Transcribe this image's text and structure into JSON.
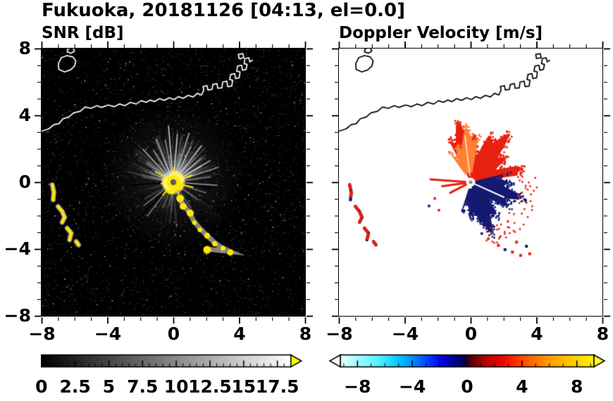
{
  "title": "Fukuoka, 20181126 [04:13, el=0.0]",
  "coastline": {
    "region": "Fukuoka coast and islands",
    "paths": [
      {
        "name": "mainland-coast",
        "closed": false,
        "points": [
          [
            -8,
            3.05
          ],
          [
            -7.55,
            3.2
          ],
          [
            -7.25,
            3.45
          ],
          [
            -6.95,
            3.5
          ],
          [
            -6.7,
            3.8
          ],
          [
            -6.35,
            3.9
          ],
          [
            -6.05,
            4.15
          ],
          [
            -5.65,
            4.25
          ],
          [
            -5.35,
            4.5
          ],
          [
            -5,
            4.42
          ],
          [
            -4.65,
            4.58
          ],
          [
            -4.35,
            4.48
          ],
          [
            -3.95,
            4.62
          ],
          [
            -3.6,
            4.52
          ],
          [
            -3.25,
            4.68
          ],
          [
            -2.95,
            4.58
          ],
          [
            -2.6,
            4.78
          ],
          [
            -2.25,
            4.68
          ],
          [
            -1.95,
            4.88
          ],
          [
            -1.65,
            4.78
          ],
          [
            -1.4,
            4.92
          ],
          [
            -1.15,
            4.82
          ],
          [
            -0.85,
            5
          ],
          [
            -0.55,
            4.9
          ],
          [
            -0.25,
            5.05
          ],
          [
            0.05,
            4.95
          ],
          [
            0.3,
            5.12
          ],
          [
            0.6,
            5.02
          ],
          [
            0.9,
            5.2
          ],
          [
            1.2,
            5.1
          ],
          [
            1.45,
            5.32
          ],
          [
            1.7,
            5.22
          ],
          [
            1.85,
            5.5
          ],
          [
            1.8,
            5.72
          ],
          [
            2.05,
            5.78
          ],
          [
            2.1,
            5.52
          ],
          [
            2.35,
            5.55
          ],
          [
            2.4,
            5.85
          ],
          [
            2.65,
            5.9
          ],
          [
            2.7,
            5.62
          ],
          [
            2.95,
            5.65
          ],
          [
            3,
            6
          ],
          [
            3.25,
            6.05
          ],
          [
            3.3,
            5.72
          ],
          [
            3.55,
            5.75
          ],
          [
            3.6,
            6.1
          ],
          [
            3.42,
            6.15
          ],
          [
            3.48,
            6.45
          ],
          [
            3.72,
            6.5
          ],
          [
            3.78,
            6.2
          ],
          [
            4,
            6.25
          ],
          [
            4.05,
            6.6
          ],
          [
            3.85,
            6.65
          ],
          [
            3.9,
            6.95
          ],
          [
            4.15,
            7
          ],
          [
            4.2,
            6.7
          ],
          [
            4.42,
            6.75
          ],
          [
            4.48,
            7.05
          ],
          [
            4.3,
            7.1
          ],
          [
            4.35,
            7.4
          ],
          [
            4.58,
            7.45
          ],
          [
            4.65,
            7.2
          ],
          [
            4.8,
            7.3
          ]
        ]
      },
      {
        "name": "island-northwest",
        "closed": true,
        "points": [
          [
            -6.95,
            6.75
          ],
          [
            -6.6,
            6.6
          ],
          [
            -6.25,
            6.72
          ],
          [
            -6,
            6.95
          ],
          [
            -5.92,
            7.25
          ],
          [
            -6.1,
            7.5
          ],
          [
            -6.45,
            7.58
          ],
          [
            -6.8,
            7.45
          ],
          [
            -6.98,
            7.1
          ]
        ]
      },
      {
        "name": "islet-top",
        "closed": true,
        "points": [
          [
            -6.45,
            7.8
          ],
          [
            -6.2,
            7.72
          ],
          [
            -6,
            7.85
          ],
          [
            -6.1,
            8.05
          ],
          [
            -6.4,
            8
          ]
        ]
      },
      {
        "name": "islet-harbor",
        "closed": true,
        "points": [
          [
            4,
            7.4
          ],
          [
            4.28,
            7.45
          ],
          [
            4.22,
            7.7
          ],
          [
            3.95,
            7.65
          ]
        ]
      }
    ]
  },
  "echo_arcs": [
    [
      [
        -7.35,
        -0.15
      ],
      [
        -7.25,
        -0.6
      ],
      [
        -7.3,
        -1.05
      ]
    ],
    [
      [
        -7,
        -1.45
      ],
      [
        -6.75,
        -1.75
      ],
      [
        -6.6,
        -2.1
      ],
      [
        -6.75,
        -2.4
      ]
    ],
    [
      [
        -6.45,
        -2.75
      ],
      [
        -6.2,
        -3.05
      ],
      [
        -6.3,
        -3.45
      ]
    ],
    [
      [
        -5.9,
        -3.55
      ],
      [
        -5.75,
        -3.75
      ]
    ]
  ],
  "chart_data": [
    {
      "id": "snr",
      "type": "heatmap",
      "title": "SNR [dB]",
      "xlim": [
        -8,
        8
      ],
      "ylim": [
        -8,
        8
      ],
      "xtick_values": [
        -8,
        -4,
        0,
        4,
        8
      ],
      "xtick_labels": [
        "−8",
        "−4",
        "0",
        "4",
        "8"
      ],
      "ytick_values": [
        8,
        4,
        0,
        -4,
        -8
      ],
      "ytick_labels": [
        "8",
        "4",
        "0",
        "−4",
        "−8"
      ],
      "background_color": "#000000",
      "radar_site": [
        0,
        0
      ],
      "colorbar": {
        "min": 0,
        "max": 18.5,
        "tick_values": [
          0,
          2.5,
          5,
          7.5,
          10,
          12.5,
          15,
          17.5
        ],
        "tick_labels": [
          "0",
          "2.5",
          "5",
          "7.5",
          "10",
          "12.5",
          "15",
          "17.5"
        ],
        "minor_tick_step": 0.5,
        "stops": [
          [
            0,
            "#000000"
          ],
          [
            18.5,
            "#ffffff"
          ]
        ],
        "over_arrow_color": "#ffff00"
      },
      "render": {
        "noise": {
          "count": 6500,
          "max_gray": 115,
          "bright_count": 130
        },
        "glow": {
          "center": [
            0,
            0.3
          ],
          "radius_km": 4.4,
          "alpha": 0.16
        },
        "faint_streak_count": 150,
        "bright_streaks": [
          [
            95,
            3.4,
            0.7
          ],
          [
            101,
            2.6,
            0.5
          ],
          [
            85,
            2.9,
            0.55
          ],
          [
            72,
            3.1,
            0.6
          ],
          [
            63,
            2.4,
            0.45
          ],
          [
            52,
            2.8,
            0.5
          ],
          [
            40,
            2.2,
            0.45
          ],
          [
            30,
            2.6,
            0.55
          ],
          [
            18,
            2.9,
            0.5
          ],
          [
            8,
            2.3,
            0.4
          ],
          [
            -4,
            2.7,
            0.5
          ],
          [
            -18,
            2.1,
            0.35
          ],
          [
            -35,
            1.8,
            0.3
          ],
          [
            112,
            2.8,
            0.55
          ],
          [
            122,
            2.3,
            0.45
          ],
          [
            133,
            2.7,
            0.5
          ],
          [
            145,
            2,
            0.35
          ],
          [
            158,
            1.6,
            0.3
          ],
          [
            205,
            1.9,
            0.3
          ],
          [
            218,
            2.3,
            0.35
          ],
          [
            232,
            2.6,
            0.4
          ],
          [
            247,
            1.7,
            0.3
          ],
          [
            260,
            1.4,
            0.25
          ],
          [
            -55,
            1.9,
            0.3
          ],
          [
            -70,
            1.5,
            0.25
          ]
        ],
        "dark_spokes": [
          [
            184,
            2.6
          ],
          [
            205,
            2.2
          ],
          [
            226,
            3.3
          ],
          [
            351,
            2.4
          ]
        ],
        "center_echo": {
          "color": "#ffe800",
          "radius_km": 0.55,
          "spike_count": 14,
          "spike_len_km": 0.9
        },
        "echo_chain": {
          "color": "#ffe800",
          "points": [
            [
              0.35,
              -0.95
            ],
            [
              0.65,
              -1.4
            ],
            [
              1,
              -1.85
            ],
            [
              1.25,
              -2.35
            ],
            [
              1.65,
              -2.8
            ],
            [
              2.1,
              -3.25
            ],
            [
              2.55,
              -3.65
            ],
            [
              3,
              -3.95
            ],
            [
              3.45,
              -4.15
            ],
            [
              2,
              -4
            ]
          ]
        },
        "arc_color": "#ffe800"
      }
    },
    {
      "id": "velocity",
      "type": "heatmap",
      "title": "Doppler Velocity [m/s]",
      "xlim": [
        -8,
        8
      ],
      "ylim": [
        -8,
        8
      ],
      "xtick_values": [
        -8,
        -4,
        0,
        4,
        8
      ],
      "xtick_labels": [
        "−8",
        "−4",
        "0",
        "4",
        "8"
      ],
      "background_color": "#ffffff",
      "radar_site": [
        0,
        0
      ],
      "colorbar": {
        "min": -9.25,
        "max": 9.25,
        "tick_values": [
          -8,
          -4,
          0,
          4,
          8
        ],
        "tick_labels": [
          "−8",
          "−4",
          "0",
          "4",
          "8"
        ],
        "minor_tick_step": 1,
        "stops": [
          [
            -9.25,
            "#edffff"
          ],
          [
            -8.6,
            "#c2ffff"
          ],
          [
            -7.6,
            "#8bfbff"
          ],
          [
            -6.6,
            "#5cf2ff"
          ],
          [
            -5.7,
            "#2adcff"
          ],
          [
            -4.9,
            "#00c0ff"
          ],
          [
            -4.1,
            "#0094ff"
          ],
          [
            -3.4,
            "#0064ff"
          ],
          [
            -2.7,
            "#0034ff"
          ],
          [
            -2,
            "#0008e8"
          ],
          [
            -1.4,
            "#0000b4"
          ],
          [
            -0.8,
            "#000080"
          ],
          [
            -0.25,
            "#000052"
          ],
          [
            0,
            "#28002a"
          ],
          [
            0.3,
            "#550000"
          ],
          [
            0.8,
            "#8a0000"
          ],
          [
            1.4,
            "#b40000"
          ],
          [
            2,
            "#d40000"
          ],
          [
            2.7,
            "#ee0800"
          ],
          [
            3.4,
            "#ff2800"
          ],
          [
            4.1,
            "#ff4c00"
          ],
          [
            4.9,
            "#ff7000"
          ],
          [
            5.7,
            "#ff9100"
          ],
          [
            6.6,
            "#ffae00"
          ],
          [
            7.6,
            "#ffc800"
          ],
          [
            8.6,
            "#ffe000"
          ],
          [
            9.25,
            "#fff400"
          ]
        ],
        "under_arrow_color": "#f4ffff",
        "over_arrow_color": "#ffff2e"
      },
      "render": {
        "positive_color": "#e8200f",
        "positive_light_color": "#ff8033",
        "negative_color": "#131a70",
        "red_fan": {
          "angle_deg": [
            8,
            118
          ],
          "r_km": [
            0.25,
            3.7
          ]
        },
        "orange_sector": {
          "angle_deg": [
            80,
            126
          ],
          "r_km": [
            0.6,
            3.3
          ]
        },
        "navy_fan": {
          "angle_deg": [
            -78,
            14
          ],
          "r_km": [
            0.2,
            3.3
          ]
        },
        "navy_lower": {
          "angle_deg": [
            -108,
            -70
          ],
          "r_km": [
            0.4,
            2.5
          ]
        },
        "red_fringe": {
          "angle_deg": [
            -75,
            5
          ],
          "r_km": [
            2.9,
            4.1
          ]
        },
        "left_spikes": [
          [
            176,
            2.45
          ],
          [
            188,
            1.75
          ],
          [
            207,
            1.4
          ]
        ],
        "scatter_specks": [
          [
            -2.6,
            -1.35,
            "n"
          ],
          [
            -2.25,
            -0.9,
            "r"
          ],
          [
            -2,
            -1.6,
            "r"
          ],
          [
            1,
            -3.3,
            "r"
          ],
          [
            0.6,
            -3,
            "n"
          ]
        ],
        "bottom_specks": [
          [
            1.6,
            -3.7
          ],
          [
            2,
            -3.95
          ],
          [
            2.45,
            -4.1
          ],
          [
            2.95,
            -4.3
          ],
          [
            3.3,
            -3.75
          ],
          [
            2.7,
            -3.5
          ],
          [
            3.5,
            -4.2
          ]
        ]
      }
    }
  ]
}
